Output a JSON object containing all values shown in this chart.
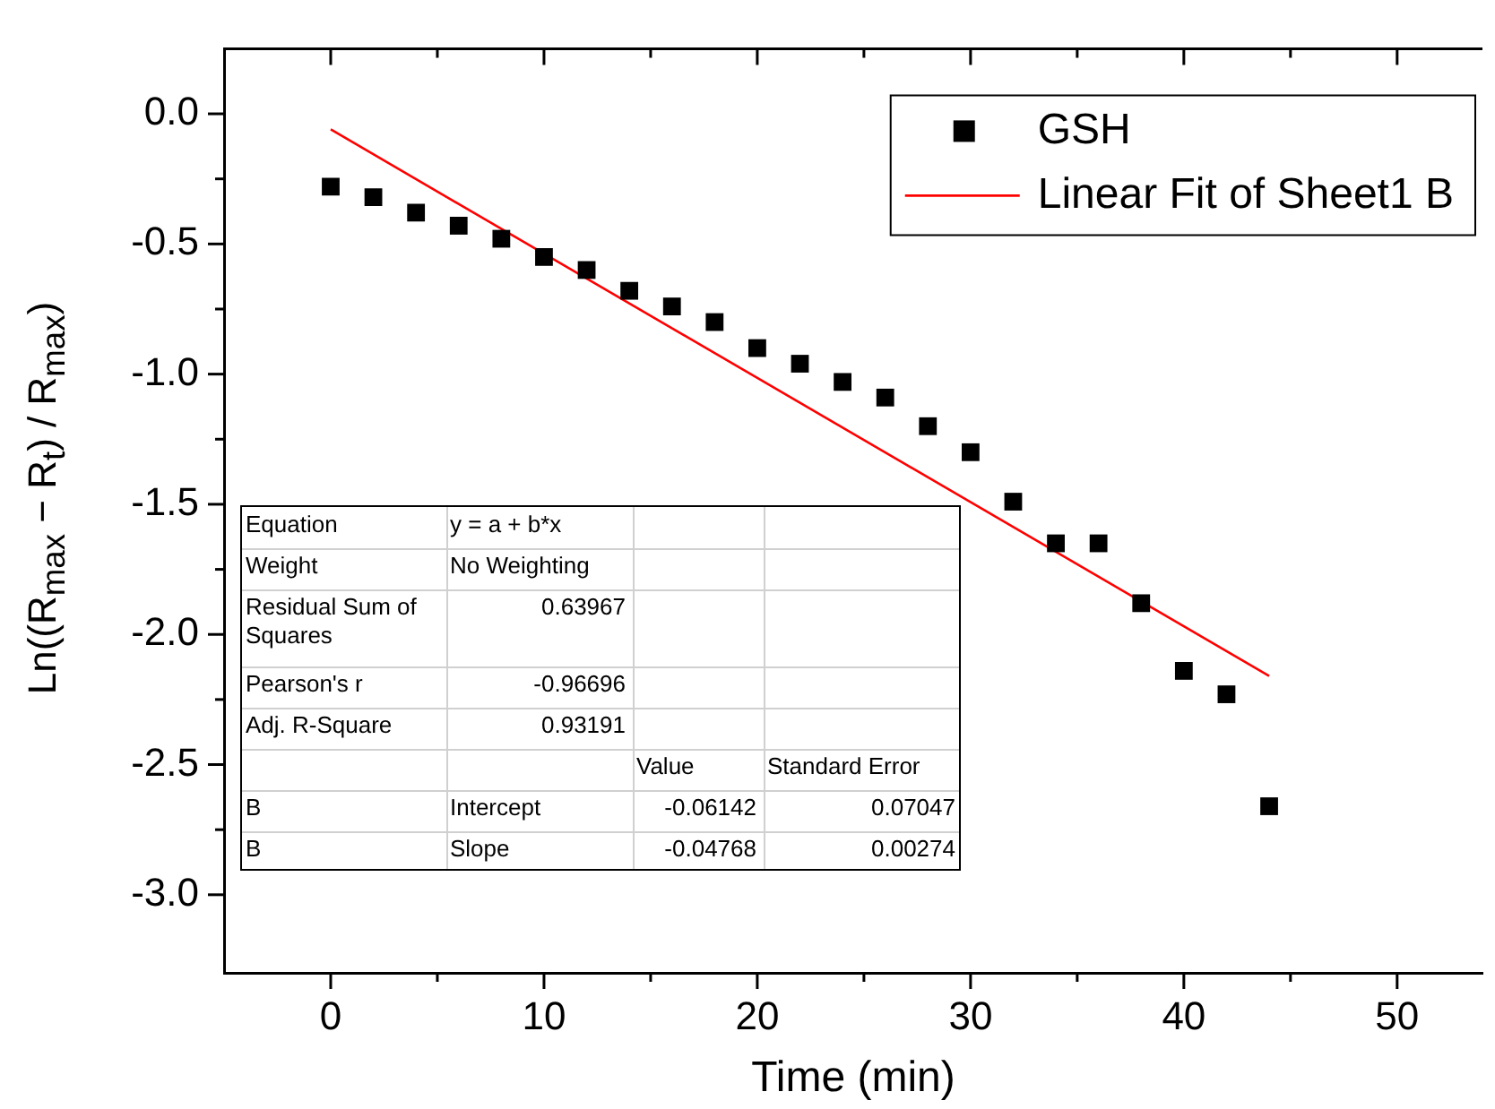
{
  "chart_data": {
    "type": "scatter",
    "xlabel": "Time (min)",
    "ylabel": "Ln((R$_{max}$ − R$_{t}$) / R$_{max}$)",
    "x": [
      0,
      2,
      4,
      6,
      8,
      10,
      12,
      14,
      16,
      18,
      20,
      22,
      24,
      26,
      28,
      30,
      32,
      34,
      36,
      38,
      40,
      42,
      44
    ],
    "series": [
      {
        "name": "GSH",
        "type": "scatter",
        "color": "#000000",
        "marker": "square",
        "values": [
          -0.28,
          -0.32,
          -0.38,
          -0.43,
          -0.48,
          -0.55,
          -0.6,
          -0.68,
          -0.74,
          -0.8,
          -0.9,
          -0.96,
          -1.03,
          -1.09,
          -1.2,
          -1.3,
          -1.49,
          -1.65,
          -1.65,
          -1.88,
          -2.14,
          -2.23,
          -2.66
        ]
      },
      {
        "name": "Linear Fit of Sheet1 B",
        "type": "line",
        "color": "#ff0000",
        "marker": "none",
        "line_style": "solid",
        "x": [
          0,
          44
        ],
        "values": [
          -0.06,
          -2.16
        ]
      }
    ],
    "xlim": [
      -5,
      54
    ],
    "ylim": [
      -3.3,
      0.25
    ],
    "xticks": [
      0,
      {
        "value": 5,
        "label": null
      },
      10,
      {
        "value": 15,
        "label": null
      },
      20,
      {
        "value": 25,
        "label": null
      },
      30,
      {
        "value": 35,
        "label": null
      },
      40,
      {
        "value": 45,
        "label": null
      },
      50
    ],
    "yticks": [
      {
        "value": 0,
        "label": "0.0"
      },
      {
        "value": -0.25,
        "label": null
      },
      {
        "value": -0.5,
        "label": "-0.5"
      },
      {
        "value": -0.75,
        "label": null
      },
      {
        "value": -1,
        "label": "-1.0"
      },
      {
        "value": -1.25,
        "label": null
      },
      {
        "value": -1.5,
        "label": "-1.5"
      },
      {
        "value": -1.75,
        "label": null
      },
      {
        "value": -2,
        "label": "-2.0"
      },
      {
        "value": -2.25,
        "label": null
      },
      {
        "value": -2.5,
        "label": "-2.5"
      },
      {
        "value": -2.75,
        "label": null
      },
      {
        "value": -3,
        "label": "-3.0"
      }
    ],
    "grid": false,
    "legend": "top right",
    "annotations": [
      "Equation",
      "y = a + b*x",
      "Weight",
      "No Weighting",
      "Residual Sum of Squares",
      "0.63967",
      "Pearson's r",
      "-0.96696",
      "Adj. R-Square",
      "0.93191",
      "Value",
      "Standard Error",
      "B",
      "Intercept",
      "-0.06142",
      "0.07047",
      "B",
      "Slope",
      "-0.04768",
      "0.00274"
    ]
  }
}
